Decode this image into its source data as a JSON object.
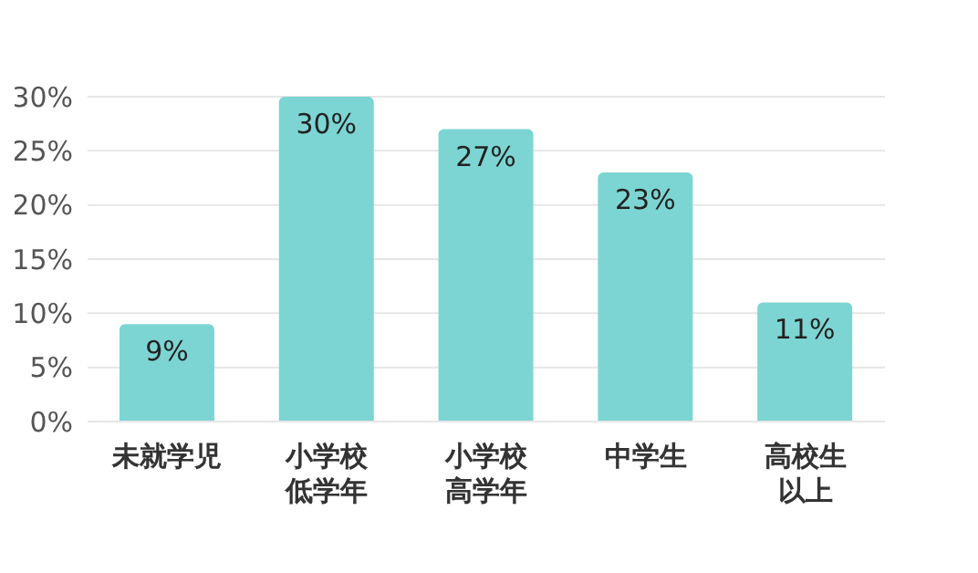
{
  "chart_data": {
    "type": "bar",
    "categories": [
      "未就学児",
      "小学校低学年",
      "小学校高学年",
      "中学生",
      "高校生以上"
    ],
    "values": [
      9,
      30,
      27,
      23,
      11
    ],
    "value_labels": [
      "9%",
      "30%",
      "27%",
      "23%",
      "11%"
    ],
    "color": "#7dd5d3",
    "ylim": [
      0,
      30
    ],
    "yticks": [
      {
        "value": 0,
        "label": "0%"
      },
      {
        "value": 5,
        "label": "5%"
      },
      {
        "value": 10,
        "label": "10%"
      },
      {
        "value": 15,
        "label": "15%"
      },
      {
        "value": 20,
        "label": "20%"
      },
      {
        "value": 25,
        "label": "25%"
      },
      {
        "value": 30,
        "label": "30%"
      }
    ],
    "grid": "y"
  }
}
